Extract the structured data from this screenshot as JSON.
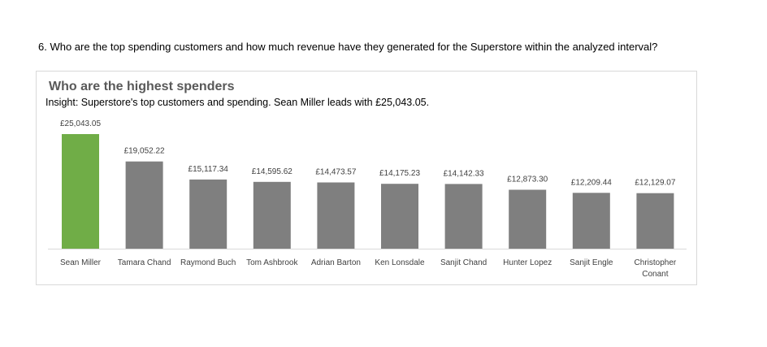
{
  "question": "6. Who are the top spending customers and how much revenue have they generated for the Superstore within the analyzed interval?",
  "colors": {
    "highlight": "#70ad47",
    "bar": "#7f7f7f",
    "axis": "#d9d9d9",
    "label": "#404040"
  },
  "chart_data": {
    "type": "bar",
    "title": "Who are the highest spenders",
    "subtitle": "Insight: Superstore's top customers and spending. Sean Miller leads with £25,043.05.",
    "categories": [
      [
        "Sean Miller"
      ],
      [
        "Tamara Chand"
      ],
      [
        "Raymond Buch"
      ],
      [
        "Tom Ashbrook"
      ],
      [
        "Adrian Barton"
      ],
      [
        "Ken Lonsdale"
      ],
      [
        "Sanjit Chand"
      ],
      [
        "Hunter Lopez"
      ],
      [
        "Sanjit Engle"
      ],
      [
        "Christopher",
        "Conant"
      ]
    ],
    "values": [
      25043.05,
      19052.22,
      15117.34,
      14595.62,
      14473.57,
      14175.23,
      14142.33,
      12873.3,
      12209.44,
      12129.07
    ],
    "value_labels": [
      "£25,043.05",
      "£19,052.22",
      "£15,117.34",
      "£14,595.62",
      "£14,473.57",
      "£14,175.23",
      "£14,142.33",
      "£12,873.30",
      "£12,209.44",
      "£12,129.07"
    ],
    "highlight_index": 0,
    "xlabel": "",
    "ylabel": "",
    "ylim": [
      0,
      25043.05
    ],
    "grid": false,
    "legend": "none"
  }
}
